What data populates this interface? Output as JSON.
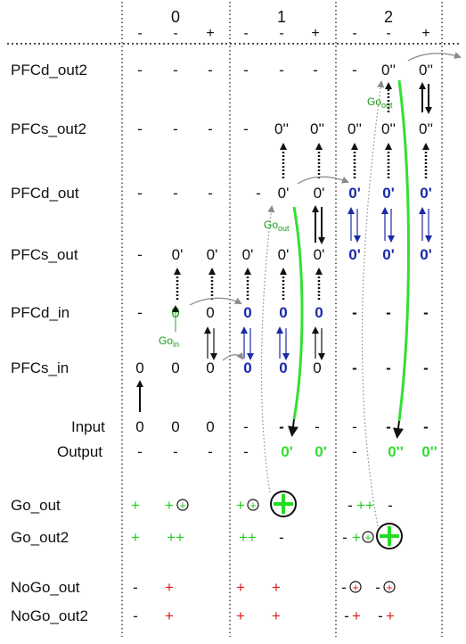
{
  "columns": {
    "groups": [
      "0",
      "1",
      "2"
    ],
    "sub": [
      "-",
      "-",
      "+",
      "-",
      "-",
      "+",
      "-",
      "-",
      "+"
    ]
  },
  "rows": [
    {
      "label": "PFCd_out2",
      "cells": [
        "-",
        "-",
        "-",
        "-",
        "-",
        "-",
        "-",
        "0''",
        "0''"
      ]
    },
    {
      "label": "PFCs_out2",
      "cells": [
        "-",
        "-",
        "-",
        "-",
        "0''",
        "0''",
        "0''",
        "0''",
        "0''"
      ]
    },
    {
      "label": "PFCd_out",
      "cells": [
        "-",
        "-",
        "-",
        "-",
        "0'",
        "0'",
        "0'",
        "0'",
        "0'"
      ]
    },
    {
      "label": "PFCs_out",
      "cells": [
        "-",
        "0'",
        "0'",
        "0'",
        "0'",
        "0'",
        "0'",
        "0'",
        "0'"
      ]
    },
    {
      "label": "PFCd_in",
      "cells": [
        "-",
        "0",
        "0",
        "0",
        "0",
        "0",
        "-",
        "-",
        "-"
      ]
    },
    {
      "label": "PFCs_in",
      "cells": [
        "0",
        "0",
        "0",
        "0",
        "0",
        "0",
        "-",
        "-",
        "-"
      ]
    },
    {
      "label": "Input",
      "cells": [
        "0",
        "0",
        "0",
        "-",
        "-",
        "-",
        "-",
        "-",
        "-"
      ]
    },
    {
      "label": "Output",
      "cells": [
        "-",
        "-",
        "-",
        "-",
        "0'",
        "0'",
        "-",
        "0''",
        "0''"
      ]
    }
  ],
  "gates": [
    {
      "label": "Go_out",
      "cells": [
        "+",
        "+",
        "",
        "+",
        "",
        "",
        "-++",
        "-",
        ""
      ]
    },
    {
      "label": "Go_out2",
      "cells": [
        "+",
        "++",
        "",
        "++",
        "-",
        "",
        "-+",
        "",
        ""
      ]
    },
    {
      "label": "NoGo_out",
      "cells": [
        "-",
        "+",
        "",
        "+",
        "+",
        "",
        "-",
        "-",
        ""
      ]
    },
    {
      "label": "NoGo_out2",
      "cells": [
        "-",
        "+",
        "",
        "+",
        "+",
        "",
        "-+",
        "-+",
        ""
      ]
    }
  ],
  "annotations": {
    "go_in": "Go",
    "go_in_sub": "in",
    "go_out": "Go",
    "go_out_sub": "out"
  },
  "colors": {
    "text": "#111111",
    "green": "#22cc22",
    "bright_green": "#33e033",
    "dark_green": "#1a9a1a",
    "blue": "#1a2aa8",
    "red": "#e01a1a",
    "gray": "#8a8a8a"
  }
}
